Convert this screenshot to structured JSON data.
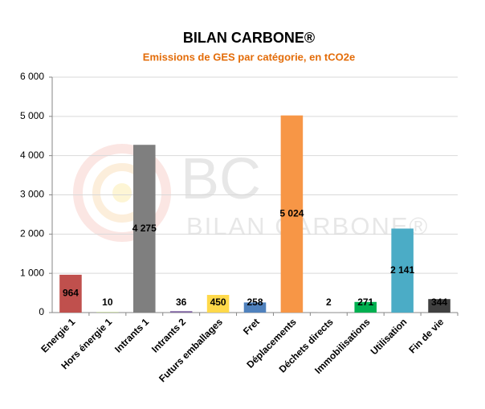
{
  "chart_data": {
    "type": "bar",
    "title": "BILAN CARBONE®",
    "subtitle": "Emissions de GES par catégorie, en tCO2e",
    "watermark": {
      "logo": "BC",
      "text": "BILAN CARBONE®"
    },
    "categories": [
      "Energie 1",
      "Hors énergie 1",
      "Intrants 1",
      "Intrants 2",
      "Futurs emballages",
      "Fret",
      "Déplacements",
      "Déchets directs",
      "Immobilisations",
      "Utilisation",
      "Fin de vie"
    ],
    "values": [
      964,
      10,
      4275,
      36,
      450,
      258,
      5024,
      2,
      271,
      2141,
      344
    ],
    "value_labels": [
      "964",
      "10",
      "4 275",
      "36",
      "450",
      "258",
      "5 024",
      "2",
      "271",
      "2 141",
      "344"
    ],
    "colors": [
      "#c0504d",
      "#9bbb59",
      "#7f7f7f",
      "#8064a2",
      "#ffd94a",
      "#4f81bd",
      "#f79646",
      "#bfbfbf",
      "#00b050",
      "#4bacc6",
      "#404040"
    ],
    "ylim": [
      0,
      6000
    ],
    "yticks": [
      0,
      {
        "value": 1000,
        "label": "1 000"
      },
      {
        "value": 2000,
        "label": "2 000"
      },
      {
        "value": 3000,
        "label": "3 000"
      },
      {
        "value": 4000,
        "label": "4 000"
      },
      {
        "value": 5000,
        "label": "5 000"
      },
      {
        "value": 6000,
        "label": "6 000"
      }
    ],
    "grid": true
  }
}
